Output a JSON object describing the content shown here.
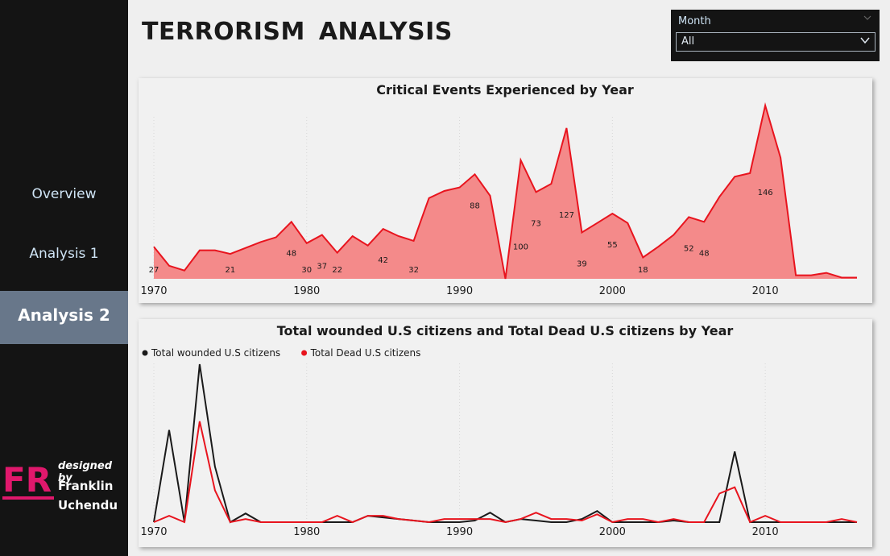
{
  "title": "TERRORISM  ANALYSIS",
  "nav": {
    "items": [
      "Overview",
      "Analysis 1",
      "Analysis 2"
    ],
    "active": "Analysis 2"
  },
  "credit": {
    "logo_text": "FR",
    "designed_by": "designed by",
    "first_name": "Franklin",
    "last_name": "Uchendu",
    "logo_color": "#e0186c"
  },
  "slicer": {
    "label": "Month",
    "value": "All"
  },
  "chart_data": [
    {
      "type": "area",
      "title": "Critical Events Experienced by Year",
      "xlabel": "",
      "ylabel": "",
      "xlim": [
        1970,
        2016
      ],
      "ylim": [
        0,
        150
      ],
      "x_ticks": [
        1970,
        1980,
        1990,
        2000,
        2010
      ],
      "grid": false,
      "series": [
        {
          "color": "#e8141e",
          "fill": "#f48a8a",
          "x": [
            1970,
            1971,
            1972,
            1973,
            1974,
            1975,
            1976,
            1977,
            1978,
            1979,
            1980,
            1981,
            1982,
            1983,
            1984,
            1985,
            1986,
            1987,
            1988,
            1989,
            1990,
            1991,
            1992,
            1993,
            1994,
            1995,
            1996,
            1997,
            1998,
            1999,
            2000,
            2001,
            2002,
            2003,
            2004,
            2005,
            2006,
            2007,
            2008,
            2009,
            2010,
            2011,
            2012,
            2013,
            2014,
            2015,
            2016
          ],
          "y": [
            27,
            11,
            7,
            24,
            24,
            21,
            26,
            31,
            35,
            48,
            30,
            37,
            22,
            36,
            28,
            42,
            36,
            32,
            68,
            74,
            77,
            88,
            70,
            0,
            100,
            73,
            80,
            127,
            39,
            47,
            55,
            47,
            18,
            27,
            37,
            52,
            48,
            69,
            86,
            89,
            146,
            102,
            3,
            3,
            5,
            1,
            1
          ]
        }
      ],
      "data_labels": [
        {
          "x": 1970,
          "text": "27"
        },
        {
          "x": 1975,
          "text": "21"
        },
        {
          "x": 1979,
          "text": "48"
        },
        {
          "x": 1980,
          "text": "30"
        },
        {
          "x": 1981,
          "text": "37"
        },
        {
          "x": 1982,
          "text": "22"
        },
        {
          "x": 1985,
          "text": "42"
        },
        {
          "x": 1987,
          "text": "32"
        },
        {
          "x": 1991,
          "text": "88"
        },
        {
          "x": 1994,
          "text": "100"
        },
        {
          "x": 1995,
          "text": "73"
        },
        {
          "x": 1997,
          "text": "127"
        },
        {
          "x": 1998,
          "text": "39"
        },
        {
          "x": 2000,
          "text": "55"
        },
        {
          "x": 2002,
          "text": "18"
        },
        {
          "x": 2005,
          "text": "52"
        },
        {
          "x": 2006,
          "text": "48"
        },
        {
          "x": 2010,
          "text": "146"
        }
      ]
    },
    {
      "type": "line",
      "title": "Total wounded U.S citizens and Total Dead U.S citizens by Year",
      "xlabel": "",
      "ylabel": "",
      "xlim": [
        1970,
        2016
      ],
      "ylim": [
        0,
        200
      ],
      "x_ticks": [
        1970,
        1980,
        1990,
        2000,
        2010
      ],
      "grid": false,
      "legend": "top-left",
      "series": [
        {
          "name": "Total wounded U.S citizens",
          "color": "#1a1a1a",
          "x": [
            1970,
            1971,
            1972,
            1973,
            1974,
            1975,
            1976,
            1977,
            1978,
            1979,
            1980,
            1981,
            1982,
            1983,
            1984,
            1985,
            1986,
            1987,
            1988,
            1989,
            1990,
            1991,
            1992,
            1993,
            1994,
            1995,
            1996,
            1997,
            1998,
            1999,
            2000,
            2001,
            2002,
            2003,
            2004,
            2005,
            2006,
            2007,
            2008,
            2009,
            2010,
            2011,
            2012,
            2013,
            2014,
            2015,
            2016
          ],
          "y": [
            0,
            116,
            0,
            199,
            70,
            0,
            11,
            0,
            0,
            0,
            0,
            0,
            0,
            0,
            8,
            6,
            4,
            2,
            0,
            0,
            0,
            2,
            12,
            0,
            4,
            2,
            0,
            0,
            4,
            14,
            0,
            0,
            0,
            0,
            2,
            0,
            0,
            0,
            89,
            0,
            0,
            0,
            0,
            0,
            0,
            0,
            0
          ]
        },
        {
          "name": "Total Dead U.S citizens",
          "color": "#e8141e",
          "x": [
            1970,
            1971,
            1972,
            1973,
            1974,
            1975,
            1976,
            1977,
            1978,
            1979,
            1980,
            1981,
            1982,
            1983,
            1984,
            1985,
            1986,
            1987,
            1988,
            1989,
            1990,
            1991,
            1992,
            1993,
            1994,
            1995,
            1996,
            1997,
            1998,
            1999,
            2000,
            2001,
            2002,
            2003,
            2004,
            2005,
            2006,
            2007,
            2008,
            2009,
            2010,
            2011,
            2012,
            2013,
            2014,
            2015,
            2016
          ],
          "y": [
            0,
            8,
            0,
            127,
            40,
            0,
            4,
            0,
            0,
            0,
            0,
            0,
            8,
            0,
            8,
            8,
            4,
            2,
            0,
            4,
            4,
            4,
            4,
            0,
            4,
            12,
            4,
            4,
            2,
            10,
            0,
            4,
            4,
            0,
            4,
            0,
            0,
            36,
            44,
            0,
            8,
            0,
            0,
            0,
            0,
            4,
            0
          ]
        }
      ]
    }
  ]
}
